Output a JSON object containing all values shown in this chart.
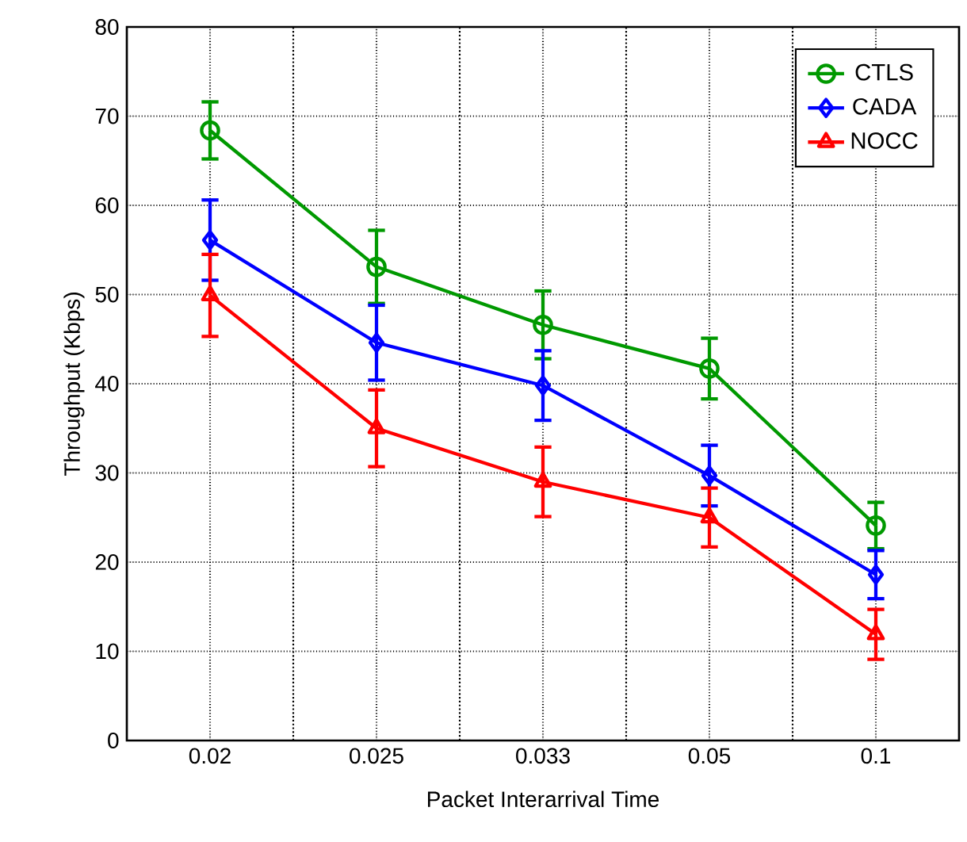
{
  "chart_data": {
    "type": "line",
    "xlabel": "Packet Interarrival Time",
    "ylabel": "Throughput (Kbps)",
    "categories": [
      "0.02",
      "0.025",
      "0.033",
      "0.05",
      "0.1"
    ],
    "series": [
      {
        "name": "CTLS",
        "color": "#009900",
        "marker": "circle",
        "values": [
          68.4,
          53.1,
          46.6,
          41.7,
          24.1
        ],
        "errors": [
          3.2,
          4.1,
          3.8,
          3.4,
          2.6
        ]
      },
      {
        "name": "CADA",
        "color": "#0000ff",
        "marker": "diamond",
        "values": [
          56.1,
          44.6,
          39.8,
          29.7,
          18.6
        ],
        "errors": [
          4.5,
          4.2,
          3.9,
          3.4,
          2.7
        ]
      },
      {
        "name": "NOCC",
        "color": "#ff0000",
        "marker": "triangle",
        "values": [
          49.9,
          35.0,
          29.0,
          25.0,
          11.9
        ],
        "errors": [
          4.6,
          4.3,
          3.9,
          3.3,
          2.8
        ]
      }
    ],
    "ylim": [
      0,
      80
    ],
    "yticks": [
      0,
      10,
      20,
      30,
      40,
      50,
      60,
      70,
      80
    ],
    "grid": true,
    "legend": "top right",
    "line_style": "solid"
  }
}
